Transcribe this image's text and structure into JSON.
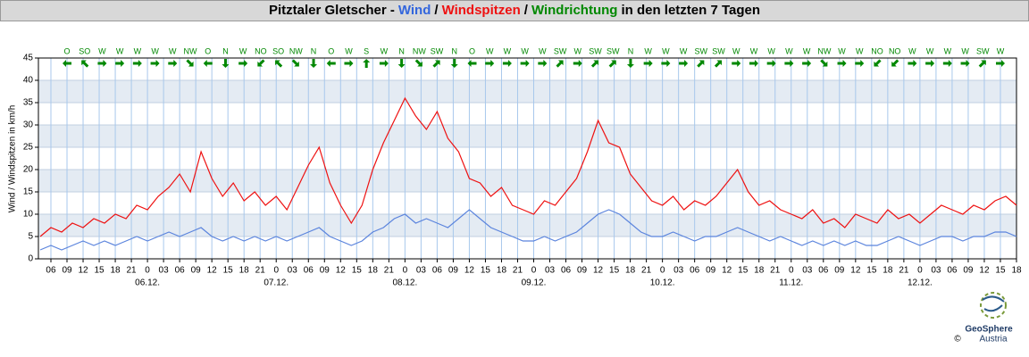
{
  "chart_data": {
    "type": "line",
    "title_prefix": "Pitztaler Gletscher -",
    "title_separator": "/",
    "direction_label": "Windrichtung",
    "title_suffix": "in den letzten 7 Tagen",
    "y_label": "Wind / Windspitzen in km/h",
    "logo_name": "GeoSphere",
    "logo_sub": "Austria",
    "logo_copyright": "©",
    "x": [
      4,
      6,
      8,
      10,
      12,
      14,
      16,
      18,
      20,
      22,
      24,
      26,
      28,
      30,
      32,
      34,
      36,
      38,
      40,
      42,
      44,
      46,
      48,
      50,
      52,
      54,
      56,
      58,
      60,
      62,
      64,
      66,
      68,
      70,
      72,
      74,
      76,
      78,
      80,
      82,
      84,
      86,
      88,
      90,
      92,
      94,
      96,
      98,
      100,
      102,
      104,
      106,
      108,
      110,
      112,
      114,
      116,
      118,
      120,
      122,
      124,
      126,
      128,
      130,
      132,
      134,
      136,
      138,
      140,
      142,
      144,
      146,
      148,
      150,
      152,
      154,
      156,
      158,
      160,
      162,
      164,
      166,
      168,
      170,
      172,
      174,
      176,
      178,
      180,
      182,
      184,
      186
    ],
    "series": [
      {
        "name": "Wind",
        "color": "#3366dd",
        "line_color": "#5b84dd",
        "values": [
          2,
          3,
          2,
          3,
          4,
          3,
          4,
          3,
          4,
          5,
          4,
          5,
          6,
          5,
          6,
          7,
          5,
          4,
          5,
          4,
          5,
          4,
          5,
          4,
          5,
          6,
          7,
          5,
          4,
          3,
          4,
          6,
          7,
          9,
          10,
          8,
          9,
          8,
          7,
          9,
          11,
          9,
          7,
          6,
          5,
          4,
          4,
          5,
          4,
          5,
          6,
          8,
          10,
          11,
          10,
          8,
          6,
          5,
          5,
          6,
          5,
          4,
          5,
          5,
          6,
          7,
          6,
          5,
          4,
          5,
          4,
          3,
          4,
          3,
          4,
          3,
          4,
          3,
          3,
          4,
          5,
          4,
          3,
          4,
          5,
          5,
          4,
          5,
          5,
          6,
          6,
          5
        ]
      },
      {
        "name": "Windspitzen",
        "color": "#ee1111",
        "line_color": "#ee1111",
        "values": [
          5,
          7,
          6,
          8,
          7,
          9,
          8,
          10,
          9,
          12,
          11,
          14,
          16,
          19,
          15,
          24,
          18,
          14,
          17,
          13,
          15,
          12,
          14,
          11,
          16,
          21,
          25,
          17,
          12,
          8,
          12,
          20,
          26,
          31,
          36,
          32,
          29,
          33,
          27,
          24,
          18,
          17,
          14,
          16,
          12,
          11,
          10,
          13,
          12,
          15,
          18,
          24,
          31,
          26,
          25,
          19,
          16,
          13,
          12,
          14,
          11,
          13,
          12,
          14,
          17,
          20,
          15,
          12,
          13,
          11,
          10,
          9,
          11,
          8,
          9,
          7,
          10,
          9,
          8,
          11,
          9,
          10,
          8,
          10,
          12,
          11,
          10,
          12,
          11,
          13,
          14,
          12
        ]
      }
    ],
    "direction_color": "#008800",
    "wind_direction": [
      "O",
      "SO",
      "W",
      "W",
      "W",
      "W",
      "W",
      "NW",
      "O",
      "N",
      "W",
      "NO",
      "SO",
      "NW",
      "N",
      "O",
      "W",
      "S",
      "W",
      "N",
      "NW",
      "SW",
      "N",
      "O",
      "W",
      "W",
      "W",
      "W",
      "SW",
      "W",
      "SW",
      "SW",
      "N",
      "W",
      "W",
      "W",
      "SW",
      "SW",
      "W",
      "W",
      "W",
      "W",
      "W",
      "NW",
      "W",
      "W",
      "NO",
      "NO",
      "W",
      "W",
      "W",
      "W",
      "SW",
      "W"
    ],
    "xlim": [
      3.67,
      186
    ],
    "xticks": [
      {
        "value": 6,
        "label": "06"
      },
      {
        "value": 9,
        "label": "09"
      },
      {
        "value": 12,
        "label": "12"
      },
      {
        "value": 15,
        "label": "15"
      },
      {
        "value": 18,
        "label": "18"
      },
      {
        "value": 21,
        "label": "21"
      },
      {
        "value": 24,
        "label": "0"
      },
      {
        "value": 27,
        "label": "03"
      },
      {
        "value": 30,
        "label": "06"
      },
      {
        "value": 33,
        "label": "09"
      },
      {
        "value": 36,
        "label": "12"
      },
      {
        "value": 39,
        "label": "15"
      },
      {
        "value": 42,
        "label": "18"
      },
      {
        "value": 45,
        "label": "21"
      },
      {
        "value": 48,
        "label": "0"
      },
      {
        "value": 51,
        "label": "03"
      },
      {
        "value": 54,
        "label": "06"
      },
      {
        "value": 57,
        "label": "09"
      },
      {
        "value": 60,
        "label": "12"
      },
      {
        "value": 63,
        "label": "15"
      },
      {
        "value": 66,
        "label": "18"
      },
      {
        "value": 69,
        "label": "21"
      },
      {
        "value": 72,
        "label": "0"
      },
      {
        "value": 75,
        "label": "03"
      },
      {
        "value": 78,
        "label": "06"
      },
      {
        "value": 81,
        "label": "09"
      },
      {
        "value": 84,
        "label": "12"
      },
      {
        "value": 87,
        "label": "15"
      },
      {
        "value": 90,
        "label": "18"
      },
      {
        "value": 93,
        "label": "21"
      },
      {
        "value": 96,
        "label": "0"
      },
      {
        "value": 99,
        "label": "03"
      },
      {
        "value": 102,
        "label": "06"
      },
      {
        "value": 105,
        "label": "09"
      },
      {
        "value": 108,
        "label": "12"
      },
      {
        "value": 111,
        "label": "15"
      },
      {
        "value": 114,
        "label": "18"
      },
      {
        "value": 117,
        "label": "21"
      },
      {
        "value": 120,
        "label": "0"
      },
      {
        "value": 123,
        "label": "03"
      },
      {
        "value": 126,
        "label": "06"
      },
      {
        "value": 129,
        "label": "09"
      },
      {
        "value": 132,
        "label": "12"
      },
      {
        "value": 135,
        "label": "15"
      },
      {
        "value": 138,
        "label": "18"
      },
      {
        "value": 141,
        "label": "21"
      },
      {
        "value": 144,
        "label": "0"
      },
      {
        "value": 147,
        "label": "03"
      },
      {
        "value": 150,
        "label": "06"
      },
      {
        "value": 153,
        "label": "09"
      },
      {
        "value": 156,
        "label": "12"
      },
      {
        "value": 159,
        "label": "15"
      },
      {
        "value": 162,
        "label": "18"
      },
      {
        "value": 165,
        "label": "21"
      },
      {
        "value": 168,
        "label": "0"
      },
      {
        "value": 171,
        "label": "03"
      },
      {
        "value": 174,
        "label": "06"
      },
      {
        "value": 177,
        "label": "09"
      },
      {
        "value": 180,
        "label": "12"
      },
      {
        "value": 183,
        "label": "15"
      },
      {
        "value": 186,
        "label": "18"
      }
    ],
    "day_ticks": [
      {
        "value": 24,
        "label": "06.12."
      },
      {
        "value": 48,
        "label": "07.12."
      },
      {
        "value": 72,
        "label": "08.12."
      },
      {
        "value": 96,
        "label": "09.12."
      },
      {
        "value": 120,
        "label": "10.12."
      },
      {
        "value": 144,
        "label": "11.12."
      },
      {
        "value": 168,
        "label": "12.12."
      }
    ],
    "ylim": [
      0,
      45
    ],
    "yticks": [
      0,
      5,
      10,
      15,
      20,
      25,
      30,
      35,
      40,
      45
    ],
    "grid": true
  }
}
